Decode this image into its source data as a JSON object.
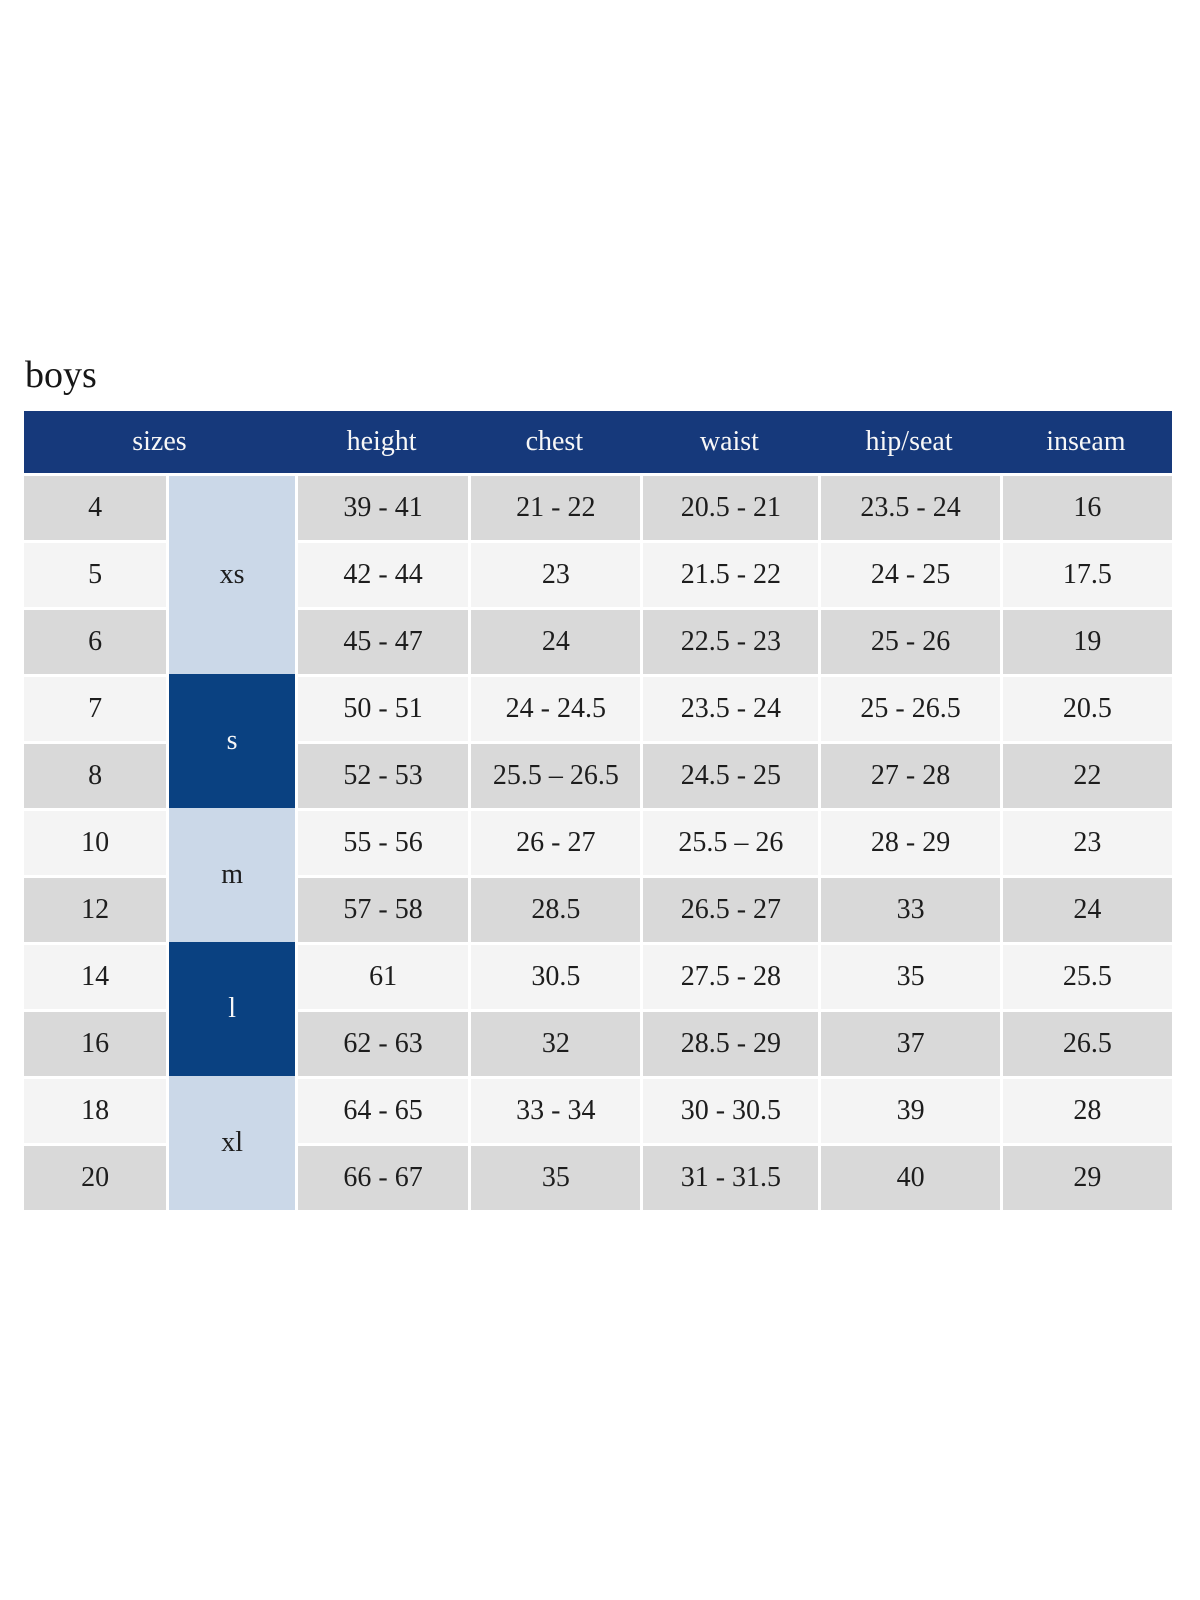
{
  "page": {
    "background": "#ffffff",
    "title": "boys"
  },
  "colors": {
    "header_navy": "#16397b",
    "group_navy": "#0a4181",
    "group_light_blue": "#cbd8e8",
    "row_shade_dark": "#d9d9d9",
    "row_shade_light": "#f4f4f4",
    "header_text": "#f7f7f7",
    "body_text": "#1d1d1d"
  },
  "chart_data": {
    "type": "table",
    "title": "boys",
    "columns": [
      "sizes",
      "height",
      "chest",
      "waist",
      "hip/seat",
      "inseam"
    ],
    "legend_position": "none",
    "grid": "cell-gaps-white",
    "size_groups": [
      {
        "label": "xs",
        "style": "light",
        "rows": [
          {
            "size": "4",
            "height": "39 - 41",
            "chest": "21 - 22",
            "waist": "20.5 - 21",
            "hip_seat": "23.5 - 24",
            "inseam": "16"
          },
          {
            "size": "5",
            "height": "42 - 44",
            "chest": "23",
            "waist": "21.5 - 22",
            "hip_seat": "24 - 25",
            "inseam": "17.5"
          },
          {
            "size": "6",
            "height": "45 - 47",
            "chest": "24",
            "waist": "22.5 - 23",
            "hip_seat": "25 - 26",
            "inseam": "19"
          }
        ]
      },
      {
        "label": "s",
        "style": "dark",
        "rows": [
          {
            "size": "7",
            "height": "50 - 51",
            "chest": "24 - 24.5",
            "waist": "23.5 - 24",
            "hip_seat": "25 - 26.5",
            "inseam": "20.5"
          },
          {
            "size": "8",
            "height": "52 - 53",
            "chest": "25.5 – 26.5",
            "waist": "24.5 - 25",
            "hip_seat": "27 - 28",
            "inseam": "22"
          }
        ]
      },
      {
        "label": "m",
        "style": "light",
        "rows": [
          {
            "size": "10",
            "height": "55 - 56",
            "chest": "26 - 27",
            "waist": "25.5 – 26",
            "hip_seat": "28 - 29",
            "inseam": "23"
          },
          {
            "size": "12",
            "height": "57 - 58",
            "chest": "28.5",
            "waist": "26.5 - 27",
            "hip_seat": "33",
            "inseam": "24"
          }
        ]
      },
      {
        "label": "l",
        "style": "dark",
        "rows": [
          {
            "size": "14",
            "height": "61",
            "chest": "30.5",
            "waist": "27.5 - 28",
            "hip_seat": "35",
            "inseam": "25.5"
          },
          {
            "size": "16",
            "height": "62 - 63",
            "chest": "32",
            "waist": "28.5 - 29",
            "hip_seat": "37",
            "inseam": "26.5"
          }
        ]
      },
      {
        "label": "xl",
        "style": "light",
        "rows": [
          {
            "size": "18",
            "height": "64 - 65",
            "chest": "33 - 34",
            "waist": "30 - 30.5",
            "hip_seat": "39",
            "inseam": "28"
          },
          {
            "size": "20",
            "height": "66 - 67",
            "chest": "35",
            "waist": "31 - 31.5",
            "hip_seat": "40",
            "inseam": "29"
          }
        ]
      }
    ]
  }
}
